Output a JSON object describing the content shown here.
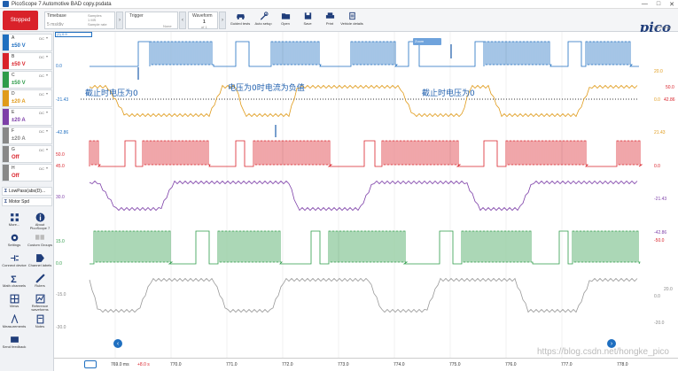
{
  "window": {
    "title": "PicoScope 7 Automotive BAD copy.psdata",
    "min": "—",
    "max": "□",
    "close": "✕"
  },
  "toolbar": {
    "stop_label": "Stopped",
    "timebase": {
      "label": "Timebase",
      "value": "5 ms/div",
      "samples": "Samples",
      "sample_value": "1 MS",
      "sample_rate": "Sample rate",
      "rate_value": "50 MS/s"
    },
    "trigger": {
      "label": "Trigger",
      "mode": "None"
    },
    "waveform": {
      "label": "Waveform",
      "value": "1",
      "of": "of 1"
    },
    "tools": [
      {
        "label": "Guided tests",
        "icon": "car-icon"
      },
      {
        "label": "Auto setup",
        "icon": "wrench-icon"
      },
      {
        "label": "Open",
        "icon": "folder-open-icon"
      },
      {
        "label": "Save",
        "icon": "save-icon"
      },
      {
        "label": "Print",
        "icon": "print-icon"
      },
      {
        "label": "Vehicle details",
        "icon": "clipboard-icon"
      }
    ],
    "logo": "pico",
    "logo_sub": "Technology"
  },
  "channels": [
    {
      "id": "A",
      "range": "±50 V",
      "coupling": "DC",
      "color": "#1f6fc0",
      "enabled": true
    },
    {
      "id": "B",
      "range": "±50 V",
      "coupling": "DC",
      "color": "#d9222a",
      "enabled": true
    },
    {
      "id": "C",
      "range": "±50 V",
      "coupling": "DC",
      "color": "#2e9c4a",
      "enabled": true
    },
    {
      "id": "D",
      "range": "±20 A",
      "coupling": "DC",
      "color": "#e09b1a",
      "enabled": true
    },
    {
      "id": "E",
      "range": "±20 A",
      "coupling": "DC",
      "color": "#7d3fa8",
      "enabled": true
    },
    {
      "id": "F",
      "range": "±20 A",
      "coupling": "DC",
      "color": "#888888",
      "enabled": true
    },
    {
      "id": "G",
      "range": "Off",
      "coupling": "DC",
      "color": "#888888",
      "enabled": false
    },
    {
      "id": "H",
      "range": "Off",
      "coupling": "DC",
      "color": "#888888",
      "enabled": false
    }
  ],
  "math": [
    {
      "label": "LowPass(abs(D)...",
      "icon": "sigma-icon"
    },
    {
      "label": "Motor Spd",
      "icon": "sigma-icon"
    }
  ],
  "side_tools": [
    {
      "label": "More...",
      "icon": "grid-icon"
    },
    {
      "label": "About PicoScope 7",
      "icon": "info-icon"
    },
    {
      "label": "Settings",
      "icon": "gear-icon"
    },
    {
      "label": "Custom Groups",
      "icon": "ab-icon"
    },
    {
      "label": "Connect device",
      "icon": "plug-icon"
    },
    {
      "label": "Channel labels",
      "icon": "tag-icon"
    },
    {
      "label": "Math channels",
      "icon": "sigma-icon"
    },
    {
      "label": "Rulers",
      "icon": "ruler-icon"
    },
    {
      "label": "Views",
      "icon": "views-icon"
    },
    {
      "label": "Reference waveforms",
      "icon": "reference-icon"
    },
    {
      "label": "Measurements",
      "icon": "measure-icon"
    },
    {
      "label": "Notes",
      "icon": "notes-icon"
    },
    {
      "label": "Send feedback",
      "icon": "feedback-icon"
    }
  ],
  "plot": {
    "ruler_tag": "(1) 0.9",
    "zoom_label": "Zoom",
    "left_axis": [
      "0.0",
      "-21.43",
      "-42.86",
      "50.0",
      "45.0",
      "30.0",
      "15.0",
      "0.0",
      "-15.0",
      "-30.0",
      "-45.0"
    ],
    "left_axis_labels": {
      "a_unit": "V",
      "b_unit": "V",
      "b_label": "-50.0",
      "c_unit": "V",
      "c_label": "-20.0"
    },
    "right_axis": [
      "20.0",
      "0.0",
      "50.0",
      "42.86",
      "21.43",
      "0.0",
      "-21.43",
      "-42.86",
      "-50.0",
      "20.0",
      "0.0",
      "-20.0"
    ],
    "annotations": [
      "截止时电压为0",
      "电压为0时电流为负值",
      "截止时电压为0"
    ]
  },
  "time_axis": {
    "ruler_time": "769.0 ms",
    "delta": "+8.0 s",
    "ticks": [
      "770.0",
      "771.0",
      "772.0",
      "773.0",
      "774.0",
      "775.0",
      "776.0",
      "777.0",
      "778.0"
    ]
  },
  "watermark": "https://blog.csdn.net/hongke_pico"
}
